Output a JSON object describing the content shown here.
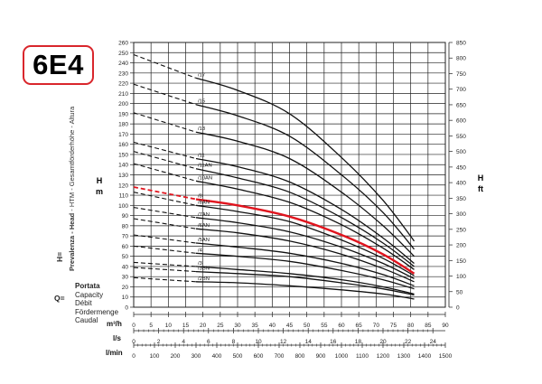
{
  "model_badge": "6E4",
  "left_axis": {
    "symbol": "H=",
    "label_bold": "Prevalenza - Head",
    "label_rest": " - HTM - Gesamtförderhöhe - Altura",
    "unit_top": "H",
    "unit_bottom": "m"
  },
  "right_axis": {
    "unit_top": "H",
    "unit_bottom": "ft"
  },
  "flow_label": {
    "symbol": "Q=",
    "lines": [
      "Portata",
      "Capacity",
      "Débit",
      "Fördermenge",
      "Caudal"
    ]
  },
  "colors": {
    "grid": "#222222",
    "curve": "#111111",
    "highlight": "#e0141e",
    "badge_border": "#d9262c"
  },
  "chart_data": {
    "type": "line",
    "y_left": {
      "unit": "m",
      "lim": [
        0,
        260
      ],
      "ticks": [
        0,
        10,
        20,
        30,
        40,
        50,
        60,
        70,
        80,
        90,
        100,
        110,
        120,
        130,
        140,
        150,
        160,
        170,
        180,
        190,
        200,
        210,
        220,
        230,
        240,
        250,
        260
      ]
    },
    "y_right": {
      "unit": "ft",
      "lim": [
        0,
        850
      ],
      "ticks": [
        0,
        50,
        100,
        150,
        200,
        250,
        300,
        350,
        400,
        450,
        500,
        550,
        600,
        650,
        700,
        750,
        800,
        850
      ]
    },
    "x_axes": [
      {
        "unit": "m³/h",
        "lim": [
          0,
          90
        ],
        "ticks": [
          0,
          5,
          10,
          15,
          20,
          25,
          30,
          35,
          40,
          45,
          50,
          55,
          60,
          65,
          70,
          75,
          80,
          85,
          90
        ]
      },
      {
        "unit": "l/s",
        "lim": [
          0,
          25
        ],
        "ticks": [
          0,
          2,
          4,
          6,
          8,
          10,
          12,
          14,
          16,
          18,
          20,
          22,
          24
        ]
      },
      {
        "unit": "l/min",
        "lim": [
          0,
          1500
        ],
        "ticks": [
          0,
          100,
          200,
          300,
          400,
          500,
          600,
          700,
          800,
          900,
          1000,
          1100,
          1200,
          1300,
          1400,
          1500
        ]
      }
    ],
    "dashed_range_m3h": [
      0,
      18
    ],
    "solid_range_m3h": [
      18,
      81
    ],
    "highlight_series": "/8",
    "series": [
      {
        "name": "/17",
        "x": [
          0,
          18,
          30,
          45,
          60,
          72,
          81
        ],
        "y": [
          248,
          225,
          213,
          190,
          147,
          105,
          65
        ]
      },
      {
        "name": "/15",
        "x": [
          0,
          18,
          30,
          45,
          60,
          72,
          81
        ],
        "y": [
          219,
          199,
          188,
          168,
          130,
          93,
          57
        ]
      },
      {
        "name": "/13",
        "x": [
          0,
          18,
          30,
          45,
          60,
          72,
          81
        ],
        "y": [
          191,
          172,
          163,
          146,
          113,
          80,
          50
        ]
      },
      {
        "name": "/11",
        "x": [
          0,
          18,
          30,
          45,
          60,
          72,
          81
        ],
        "y": [
          162,
          146,
          138,
          123,
          96,
          68,
          43
        ]
      },
      {
        "name": "/11AN",
        "x": [
          0,
          18,
          30,
          45,
          60,
          72,
          81
        ],
        "y": [
          153,
          136,
          127,
          113,
          88,
          63,
          40
        ]
      },
      {
        "name": "/10AN",
        "x": [
          0,
          18,
          30,
          45,
          60,
          72,
          81
        ],
        "y": [
          141,
          124,
          116,
          103,
          81,
          58,
          37
        ]
      },
      {
        "name": "/8",
        "x": [
          0,
          18,
          30,
          45,
          60,
          72,
          81
        ],
        "y": [
          118,
          106,
          100,
          89,
          71,
          52,
          33
        ]
      },
      {
        "name": "/8AN",
        "x": [
          0,
          18,
          30,
          45,
          60,
          72,
          81
        ],
        "y": [
          113,
          100,
          94,
          84,
          66,
          48,
          31
        ]
      },
      {
        "name": "/7AN",
        "x": [
          0,
          18,
          30,
          45,
          60,
          72,
          81
        ],
        "y": [
          98,
          88,
          83,
          74,
          59,
          43,
          28
        ]
      },
      {
        "name": "/6AN",
        "x": [
          0,
          18,
          30,
          45,
          60,
          72,
          81
        ],
        "y": [
          87,
          77,
          73,
          65,
          52,
          38,
          25
        ]
      },
      {
        "name": "/5AN",
        "x": [
          0,
          18,
          30,
          45,
          60,
          72,
          81
        ],
        "y": [
          71,
          63,
          59,
          53,
          43,
          32,
          21
        ]
      },
      {
        "name": "/4",
        "x": [
          0,
          18,
          30,
          45,
          60,
          72,
          81
        ],
        "y": [
          60,
          53,
          50,
          45,
          36,
          27,
          18
        ]
      },
      {
        "name": "/3",
        "x": [
          0,
          18,
          30,
          45,
          60,
          72,
          81
        ],
        "y": [
          44,
          40,
          37,
          33,
          27,
          20,
          13
        ]
      },
      {
        "name": "/3BN",
        "x": [
          0,
          18,
          30,
          45,
          60,
          72,
          81
        ],
        "y": [
          39,
          35,
          33,
          30,
          24,
          18,
          12
        ]
      },
      {
        "name": "/2BN",
        "x": [
          0,
          18,
          30,
          45,
          60,
          72,
          81
        ],
        "y": [
          29,
          25,
          24,
          21,
          17,
          13,
          8
        ]
      }
    ]
  }
}
